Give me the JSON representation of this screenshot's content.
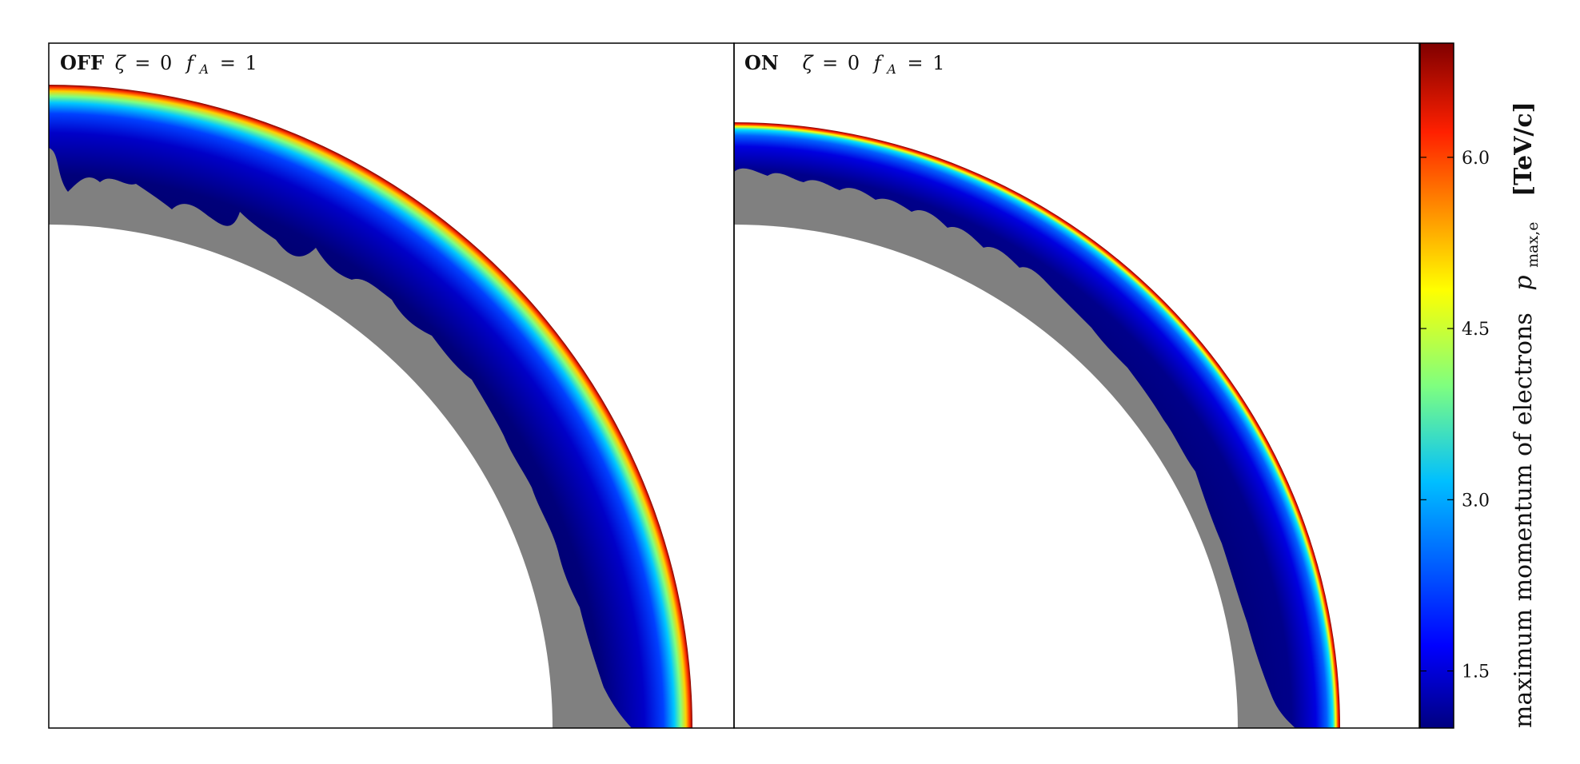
{
  "panels": [
    {
      "mode": "OFF",
      "zeta_symbol": "ζ",
      "zeta_value": "0",
      "fa_symbol": "f",
      "fa_subscript": "A",
      "fa_value": "1"
    },
    {
      "mode": "ON",
      "zeta_symbol": "ζ",
      "zeta_value": "0",
      "fa_symbol": "f",
      "fa_subscript": "A",
      "fa_value": "1"
    }
  ],
  "colorbar": {
    "label": "maximum momentum of electrons",
    "symbol": "p",
    "symbol_subscript": "max,e",
    "unit": "[TeV/c]",
    "colormap": "jet",
    "colors": [
      "#000080",
      "#0000ff",
      "#00ffff",
      "#ffff00",
      "#ff0000",
      "#800000"
    ]
  },
  "chart_data": {
    "type": "heatmap",
    "description_of_axes": "",
    "color_range": [
      1.0,
      7.0
    ],
    "colorbar_ticks": [
      "1.5",
      "3.0",
      "4.5",
      "6.0"
    ],
    "colorbar_tick_values": [
      1.5,
      3.0,
      4.5,
      6.0
    ],
    "ejecta_fill_color": "#808080",
    "panels": [
      {
        "mode": "OFF",
        "shell_min_value": 1.0,
        "shell_edge_value": 7.0
      },
      {
        "mode": "ON",
        "shell_min_value": 1.0,
        "shell_edge_value": 7.0
      }
    ]
  }
}
